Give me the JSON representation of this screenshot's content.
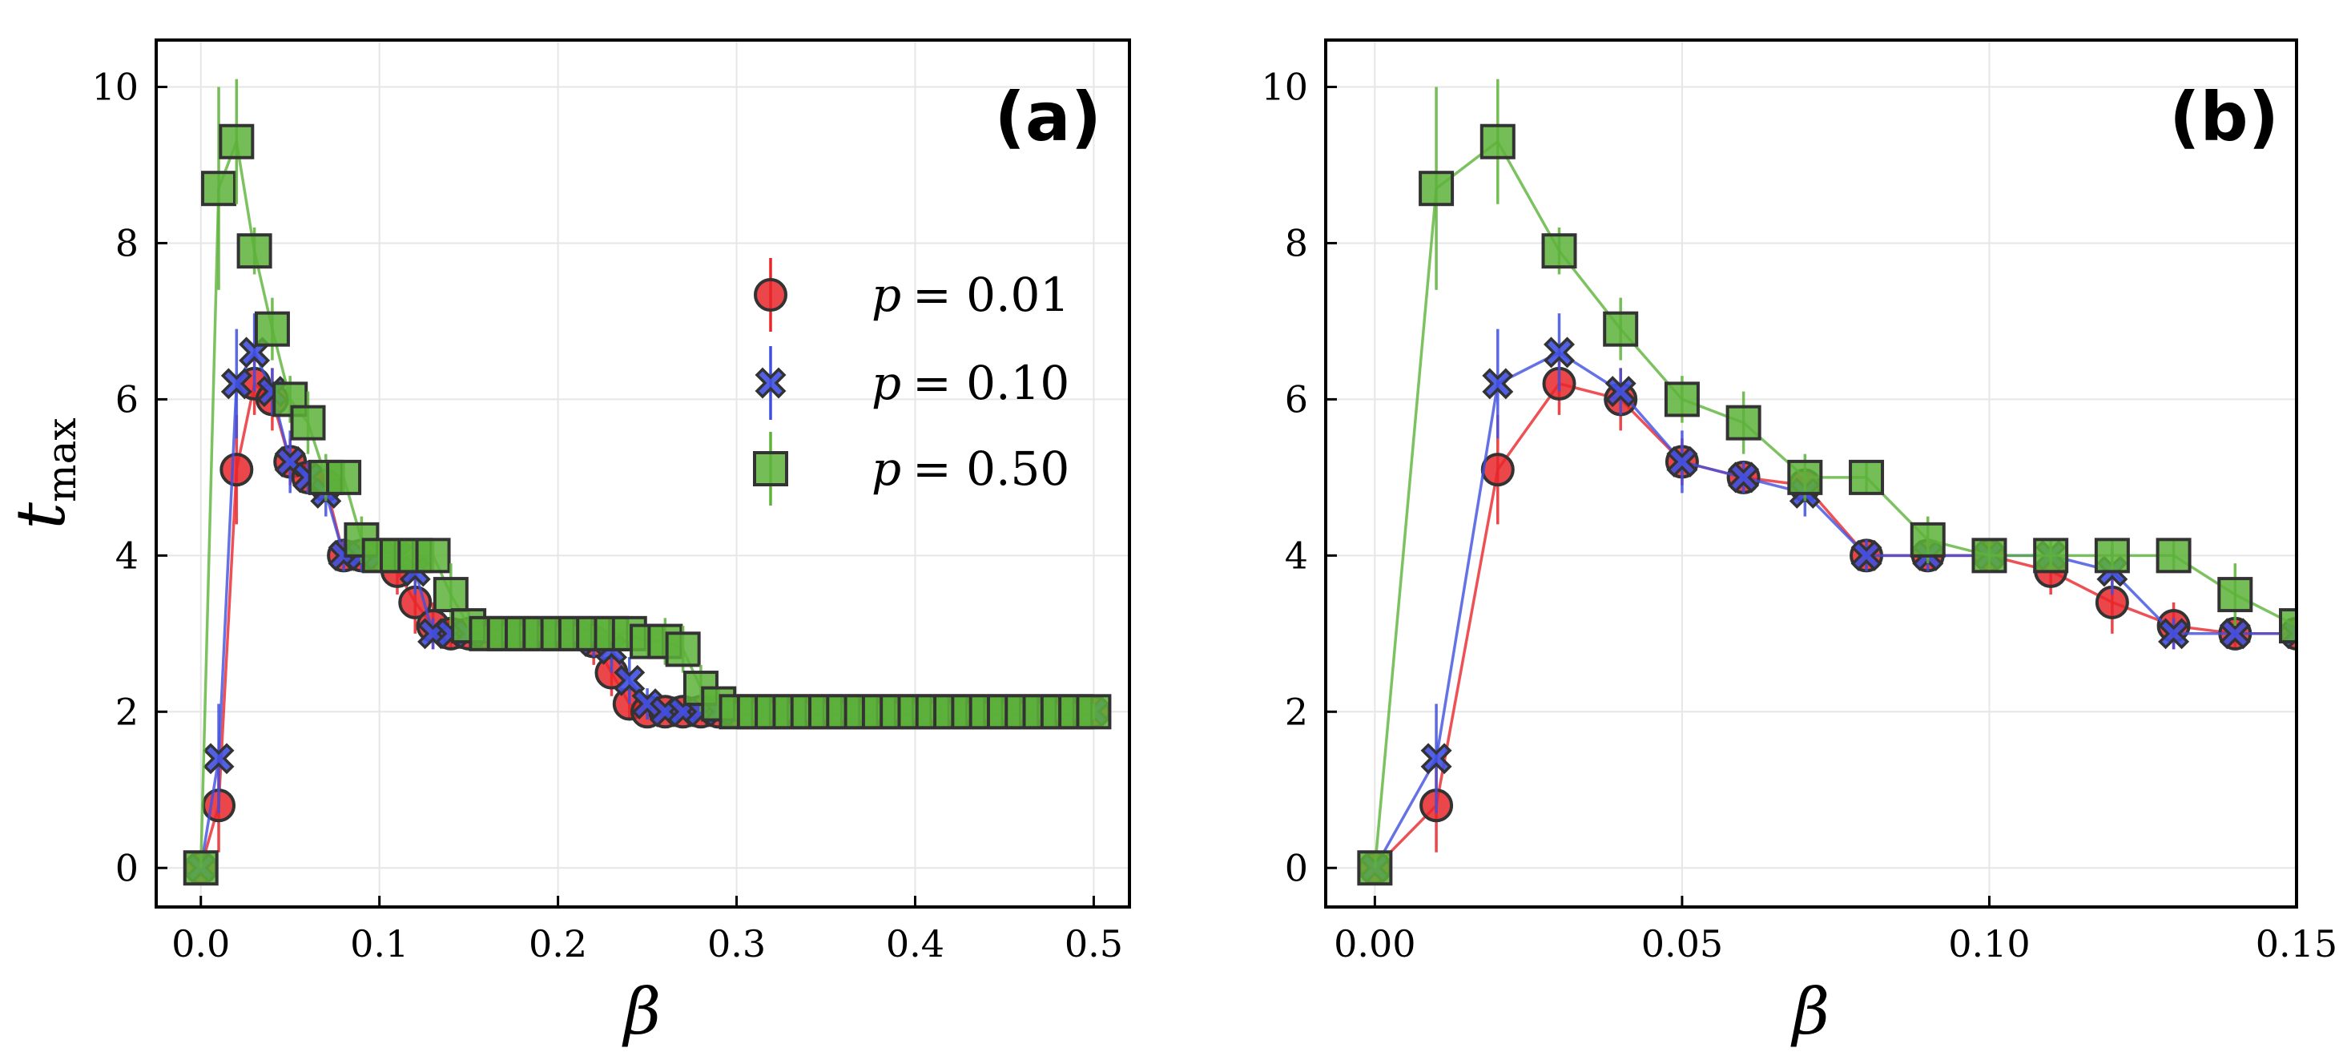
{
  "chart_data": [
    {
      "type": "line",
      "panel_label": "(a)",
      "xlabel": "β",
      "ylabel_main": "t",
      "ylabel_sub": "max",
      "xlim": [
        -0.025,
        0.52
      ],
      "ylim": [
        -0.5,
        10.6
      ],
      "xticks": [
        0.0,
        0.1,
        0.2,
        0.3,
        0.4,
        0.5
      ],
      "xtick_labels": [
        "0.0",
        "0.1",
        "0.2",
        "0.3",
        "0.4",
        "0.5"
      ],
      "yticks": [
        0,
        2,
        4,
        6,
        8,
        10
      ],
      "ytick_labels": [
        "0",
        "2",
        "4",
        "6",
        "8",
        "10"
      ],
      "grid": true,
      "legend_position": "center-right",
      "series": [
        {
          "name": "p = 0.01",
          "legend_prefix": "p",
          "legend_value": "= 0.01",
          "color": "#e8262a",
          "marker": "circle",
          "x": [
            0.0,
            0.01,
            0.02,
            0.03,
            0.04,
            0.05,
            0.06,
            0.07,
            0.08,
            0.09,
            0.1,
            0.11,
            0.12,
            0.13,
            0.14,
            0.15,
            0.16,
            0.17,
            0.18,
            0.19,
            0.2,
            0.21,
            0.22,
            0.23,
            0.24,
            0.25,
            0.26,
            0.27,
            0.28,
            0.29,
            0.3,
            0.31,
            0.32,
            0.33,
            0.34,
            0.35,
            0.36,
            0.37,
            0.38,
            0.39,
            0.4,
            0.41,
            0.42,
            0.43,
            0.44,
            0.45,
            0.46,
            0.47,
            0.48,
            0.49,
            0.5
          ],
          "y": [
            0.0,
            0.8,
            5.1,
            6.2,
            6.0,
            5.2,
            5.0,
            4.9,
            4.0,
            4.0,
            4.0,
            3.8,
            3.4,
            3.1,
            3.0,
            3.0,
            3.0,
            3.0,
            3.0,
            3.0,
            3.0,
            3.0,
            2.9,
            2.5,
            2.1,
            2.0,
            2.0,
            2.0,
            2.0,
            2.0,
            2.0,
            2.0,
            2.0,
            2.0,
            2.0,
            2.0,
            2.0,
            2.0,
            2.0,
            2.0,
            2.0,
            2.0,
            2.0,
            2.0,
            2.0,
            2.0,
            2.0,
            2.0,
            2.0,
            2.0,
            2.0
          ],
          "err": [
            0.0,
            0.6,
            0.7,
            0.4,
            0.4,
            0.3,
            0.2,
            0.2,
            0.2,
            0.2,
            0.1,
            0.3,
            0.4,
            0.3,
            0.2,
            0.1,
            0.1,
            0.1,
            0.1,
            0.1,
            0.1,
            0.2,
            0.3,
            0.3,
            0.2,
            0.1,
            0.1,
            0.1,
            0.1,
            0.1,
            0.1,
            0.1,
            0.1,
            0.1,
            0.1,
            0.1,
            0.1,
            0.1,
            0.1,
            0.1,
            0.1,
            0.1,
            0.1,
            0.1,
            0.1,
            0.1,
            0.1,
            0.1,
            0.1,
            0.1,
            0.1
          ]
        },
        {
          "name": "p = 0.10",
          "legend_prefix": "p",
          "legend_value": "= 0.10",
          "color": "#3f4fe0",
          "marker": "x",
          "x": [
            0.0,
            0.01,
            0.02,
            0.03,
            0.04,
            0.05,
            0.06,
            0.07,
            0.08,
            0.09,
            0.1,
            0.11,
            0.12,
            0.13,
            0.14,
            0.15,
            0.16,
            0.17,
            0.18,
            0.19,
            0.2,
            0.21,
            0.22,
            0.23,
            0.24,
            0.25,
            0.26,
            0.27,
            0.28,
            0.29,
            0.3,
            0.31,
            0.32,
            0.33,
            0.34,
            0.35,
            0.36,
            0.37,
            0.38,
            0.39,
            0.4,
            0.41,
            0.42,
            0.43,
            0.44,
            0.45,
            0.46,
            0.47,
            0.48,
            0.49,
            0.5
          ],
          "y": [
            0.0,
            1.4,
            6.2,
            6.6,
            6.1,
            5.2,
            5.0,
            4.8,
            4.0,
            4.0,
            4.0,
            4.0,
            3.8,
            3.0,
            3.0,
            3.0,
            3.0,
            3.0,
            3.0,
            3.0,
            3.0,
            3.0,
            2.9,
            2.8,
            2.4,
            2.1,
            2.0,
            2.0,
            2.0,
            2.0,
            2.0,
            2.0,
            2.0,
            2.0,
            2.0,
            2.0,
            2.0,
            2.0,
            2.0,
            2.0,
            2.0,
            2.0,
            2.0,
            2.0,
            2.0,
            2.0,
            2.0,
            2.0,
            2.0,
            2.0,
            2.0
          ],
          "err": [
            0.0,
            0.7,
            0.7,
            0.5,
            0.3,
            0.4,
            0.2,
            0.3,
            0.2,
            0.2,
            0.1,
            0.2,
            0.3,
            0.2,
            0.1,
            0.1,
            0.1,
            0.1,
            0.1,
            0.1,
            0.1,
            0.2,
            0.2,
            0.3,
            0.3,
            0.2,
            0.1,
            0.1,
            0.1,
            0.1,
            0.1,
            0.1,
            0.1,
            0.1,
            0.1,
            0.1,
            0.1,
            0.1,
            0.1,
            0.1,
            0.1,
            0.1,
            0.1,
            0.1,
            0.1,
            0.1,
            0.1,
            0.1,
            0.1,
            0.1,
            0.1
          ]
        },
        {
          "name": "p = 0.50",
          "legend_prefix": "p",
          "legend_value": "= 0.50",
          "color": "#5db33a",
          "marker": "square",
          "x": [
            0.0,
            0.01,
            0.02,
            0.03,
            0.04,
            0.05,
            0.06,
            0.07,
            0.08,
            0.09,
            0.1,
            0.11,
            0.12,
            0.13,
            0.14,
            0.15,
            0.16,
            0.17,
            0.18,
            0.19,
            0.2,
            0.21,
            0.22,
            0.23,
            0.24,
            0.25,
            0.26,
            0.27,
            0.28,
            0.29,
            0.3,
            0.31,
            0.32,
            0.33,
            0.34,
            0.35,
            0.36,
            0.37,
            0.38,
            0.39,
            0.4,
            0.41,
            0.42,
            0.43,
            0.44,
            0.45,
            0.46,
            0.47,
            0.48,
            0.49,
            0.5
          ],
          "y": [
            0.0,
            8.7,
            9.3,
            7.9,
            6.9,
            6.0,
            5.7,
            5.0,
            5.0,
            4.2,
            4.0,
            4.0,
            4.0,
            4.0,
            3.5,
            3.1,
            3.0,
            3.0,
            3.0,
            3.0,
            3.0,
            3.0,
            3.0,
            3.0,
            3.0,
            2.9,
            2.9,
            2.8,
            2.3,
            2.1,
            2.0,
            2.0,
            2.0,
            2.0,
            2.0,
            2.0,
            2.0,
            2.0,
            2.0,
            2.0,
            2.0,
            2.0,
            2.0,
            2.0,
            2.0,
            2.0,
            2.0,
            2.0,
            2.0,
            2.0,
            2.0
          ],
          "err": [
            0.0,
            1.3,
            0.8,
            0.3,
            0.4,
            0.3,
            0.4,
            0.3,
            0.2,
            0.3,
            0.2,
            0.2,
            0.2,
            0.2,
            0.4,
            0.2,
            0.1,
            0.1,
            0.1,
            0.1,
            0.1,
            0.1,
            0.1,
            0.1,
            0.1,
            0.2,
            0.3,
            0.3,
            0.3,
            0.2,
            0.1,
            0.1,
            0.1,
            0.1,
            0.1,
            0.1,
            0.1,
            0.1,
            0.1,
            0.1,
            0.1,
            0.1,
            0.1,
            0.1,
            0.1,
            0.1,
            0.1,
            0.1,
            0.1,
            0.1,
            0.1
          ]
        }
      ]
    },
    {
      "type": "line",
      "panel_label": "(b)",
      "xlabel": "β",
      "xlim": [
        -0.008,
        0.15
      ],
      "ylim": [
        -0.5,
        10.6
      ],
      "xticks": [
        0.0,
        0.05,
        0.1,
        0.15
      ],
      "xtick_labels": [
        "0.00",
        "0.05",
        "0.10",
        "0.15"
      ],
      "yticks": [
        0,
        2,
        4,
        6,
        8,
        10
      ],
      "ytick_labels": [
        "0",
        "2",
        "4",
        "6",
        "8",
        "10"
      ],
      "grid": true,
      "series": [
        {
          "name": "p = 0.01",
          "color": "#e8262a",
          "marker": "circle",
          "x": [
            0.0,
            0.01,
            0.02,
            0.03,
            0.04,
            0.05,
            0.06,
            0.07,
            0.08,
            0.09,
            0.1,
            0.11,
            0.12,
            0.13,
            0.14,
            0.15
          ],
          "y": [
            0.0,
            0.8,
            5.1,
            6.2,
            6.0,
            5.2,
            5.0,
            4.9,
            4.0,
            4.0,
            4.0,
            3.8,
            3.4,
            3.1,
            3.0,
            3.0
          ],
          "err": [
            0.0,
            0.6,
            0.7,
            0.4,
            0.4,
            0.3,
            0.2,
            0.2,
            0.2,
            0.2,
            0.1,
            0.3,
            0.4,
            0.3,
            0.2,
            0.1
          ]
        },
        {
          "name": "p = 0.10",
          "color": "#3f4fe0",
          "marker": "x",
          "x": [
            0.0,
            0.01,
            0.02,
            0.03,
            0.04,
            0.05,
            0.06,
            0.07,
            0.08,
            0.09,
            0.1,
            0.11,
            0.12,
            0.13,
            0.14,
            0.15
          ],
          "y": [
            0.0,
            1.4,
            6.2,
            6.6,
            6.1,
            5.2,
            5.0,
            4.8,
            4.0,
            4.0,
            4.0,
            4.0,
            3.8,
            3.0,
            3.0,
            3.0
          ],
          "err": [
            0.0,
            0.7,
            0.7,
            0.5,
            0.3,
            0.4,
            0.2,
            0.3,
            0.2,
            0.2,
            0.1,
            0.2,
            0.3,
            0.2,
            0.1,
            0.1
          ]
        },
        {
          "name": "p = 0.50",
          "color": "#5db33a",
          "marker": "square",
          "x": [
            0.0,
            0.01,
            0.02,
            0.03,
            0.04,
            0.05,
            0.06,
            0.07,
            0.08,
            0.09,
            0.1,
            0.11,
            0.12,
            0.13,
            0.14,
            0.15
          ],
          "y": [
            0.0,
            8.7,
            9.3,
            7.9,
            6.9,
            6.0,
            5.7,
            5.0,
            5.0,
            4.2,
            4.0,
            4.0,
            4.0,
            4.0,
            3.5,
            3.1
          ],
          "err": [
            0.0,
            1.3,
            0.8,
            0.3,
            0.4,
            0.3,
            0.4,
            0.3,
            0.2,
            0.3,
            0.2,
            0.2,
            0.2,
            0.2,
            0.4,
            0.2
          ]
        }
      ]
    }
  ]
}
